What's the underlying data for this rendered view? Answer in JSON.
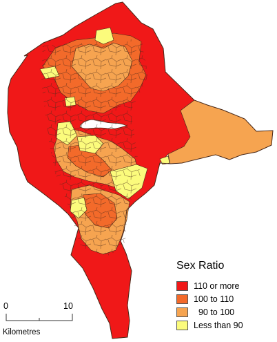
{
  "legend": {
    "title": "Sex Ratio",
    "items": [
      {
        "label": "110 or more",
        "color": "#f01818"
      },
      {
        "label": "100 to 110",
        "color": "#f36a2a"
      },
      {
        "label": "  90 to 100",
        "color": "#f6a450"
      },
      {
        "label": "Less than 90",
        "color": "#fbfb7c"
      }
    ]
  },
  "scale_bar": {
    "start_label": "0",
    "end_label": "10",
    "unit_label": "Kilometres"
  },
  "colors": {
    "boundary": "#4a2a1a",
    "river": "#ffffff",
    "background": "#ffffff"
  }
}
